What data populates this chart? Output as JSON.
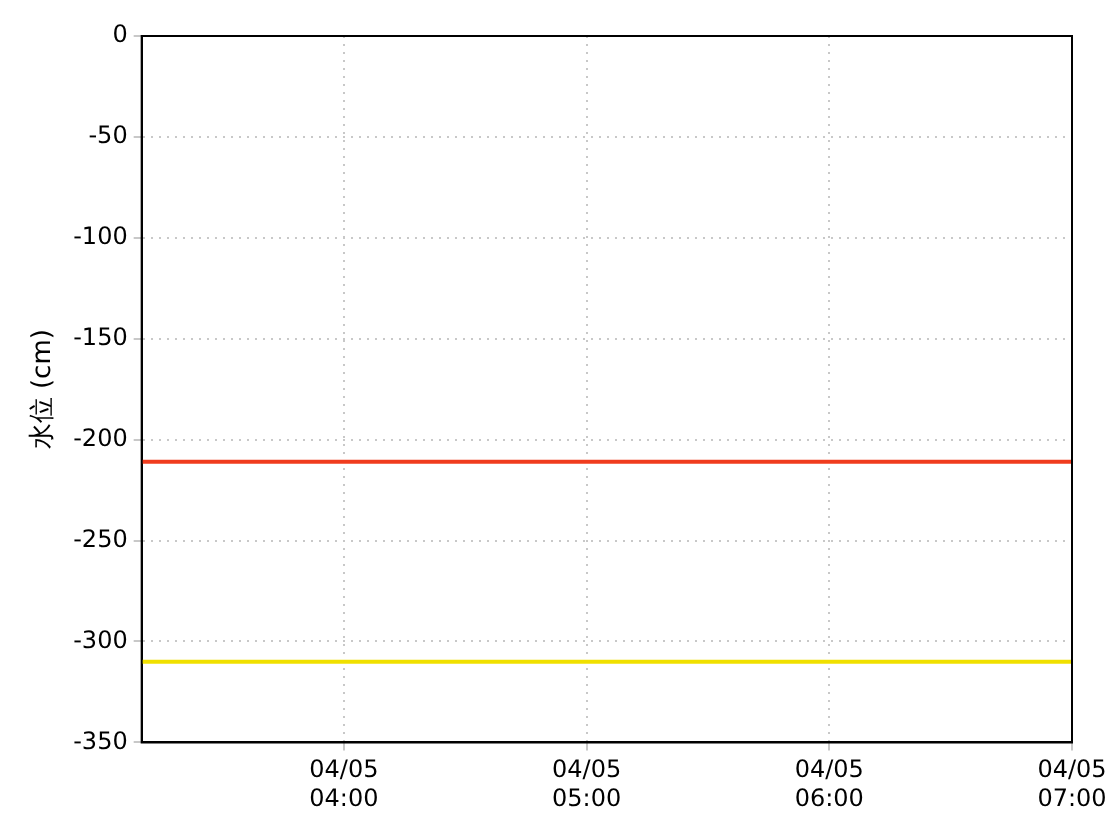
{
  "chart_data": {
    "type": "line",
    "ylabel": "水位 (cm)",
    "xlim": [
      "--04-05T03:10",
      "--04-05T07:00"
    ],
    "xticks": [
      {
        "value": "--04-05T04:00",
        "label": "04/05\n04:00"
      },
      {
        "value": "--04-05T05:00",
        "label": "04/05\n05:00"
      },
      {
        "value": "--04-05T06:00",
        "label": "04/05\n06:00"
      },
      {
        "value": "--04-05T07:00",
        "label": "04/05\n07:00"
      }
    ],
    "ylim": [
      -350,
      0
    ],
    "yticks": [
      -350,
      -300,
      -250,
      -200,
      -150,
      -100,
      -50,
      0
    ],
    "grid": true,
    "ref_lines": [
      {
        "axis": "y",
        "value": -211,
        "color": "#f03c1e"
      },
      {
        "axis": "y",
        "value": -310,
        "color": "#f0e000"
      }
    ]
  }
}
